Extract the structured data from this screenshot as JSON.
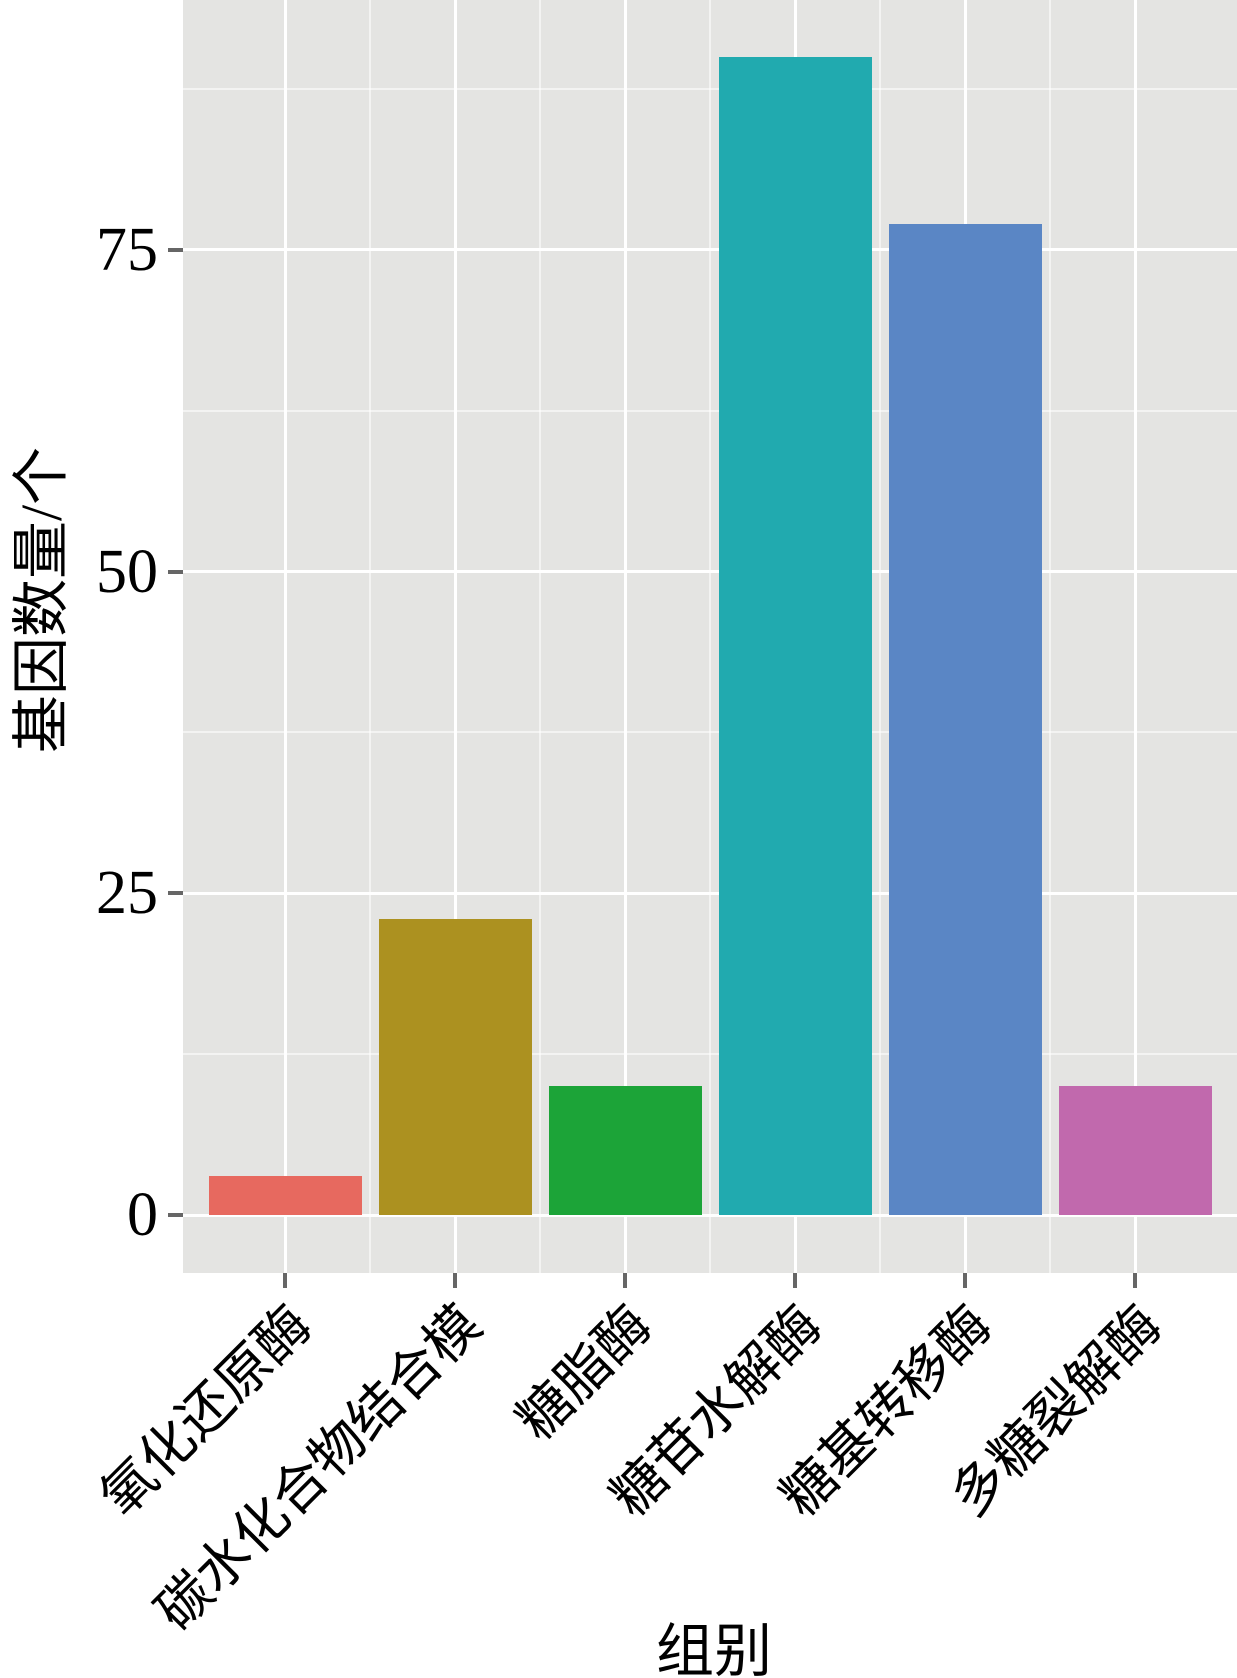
{
  "chart_data": {
    "type": "bar",
    "categories": [
      "氧化还原酶",
      "碳水化合物结合模",
      "糖脂酶",
      "糖苷水解酶",
      "糖基转移酶",
      "多糖裂解酶"
    ],
    "values": [
      3,
      23,
      10,
      90,
      77,
      10
    ],
    "bar_colors": [
      "#e7695f",
      "#ac9120",
      "#1ca438",
      "#21aaaf",
      "#5a86c5",
      "#c169ad"
    ],
    "title": "",
    "xlabel": "组别",
    "ylabel": "基因数量/个",
    "y_ticks": [
      0,
      25,
      50,
      75
    ],
    "y_minor_ticks": [
      12.5,
      37.5,
      62.5,
      87.5
    ],
    "ylim": [
      -4.5,
      94.5
    ],
    "bar_width_fraction": 0.9,
    "grid": "white major and minor gridlines on gray panel",
    "legend": "none"
  },
  "theme": {
    "panel_bg": "#e4e4e2",
    "grid_color": "#ffffff",
    "tick_color": "#666666",
    "text_color": "#000000",
    "page_bg": "#ffffff"
  }
}
